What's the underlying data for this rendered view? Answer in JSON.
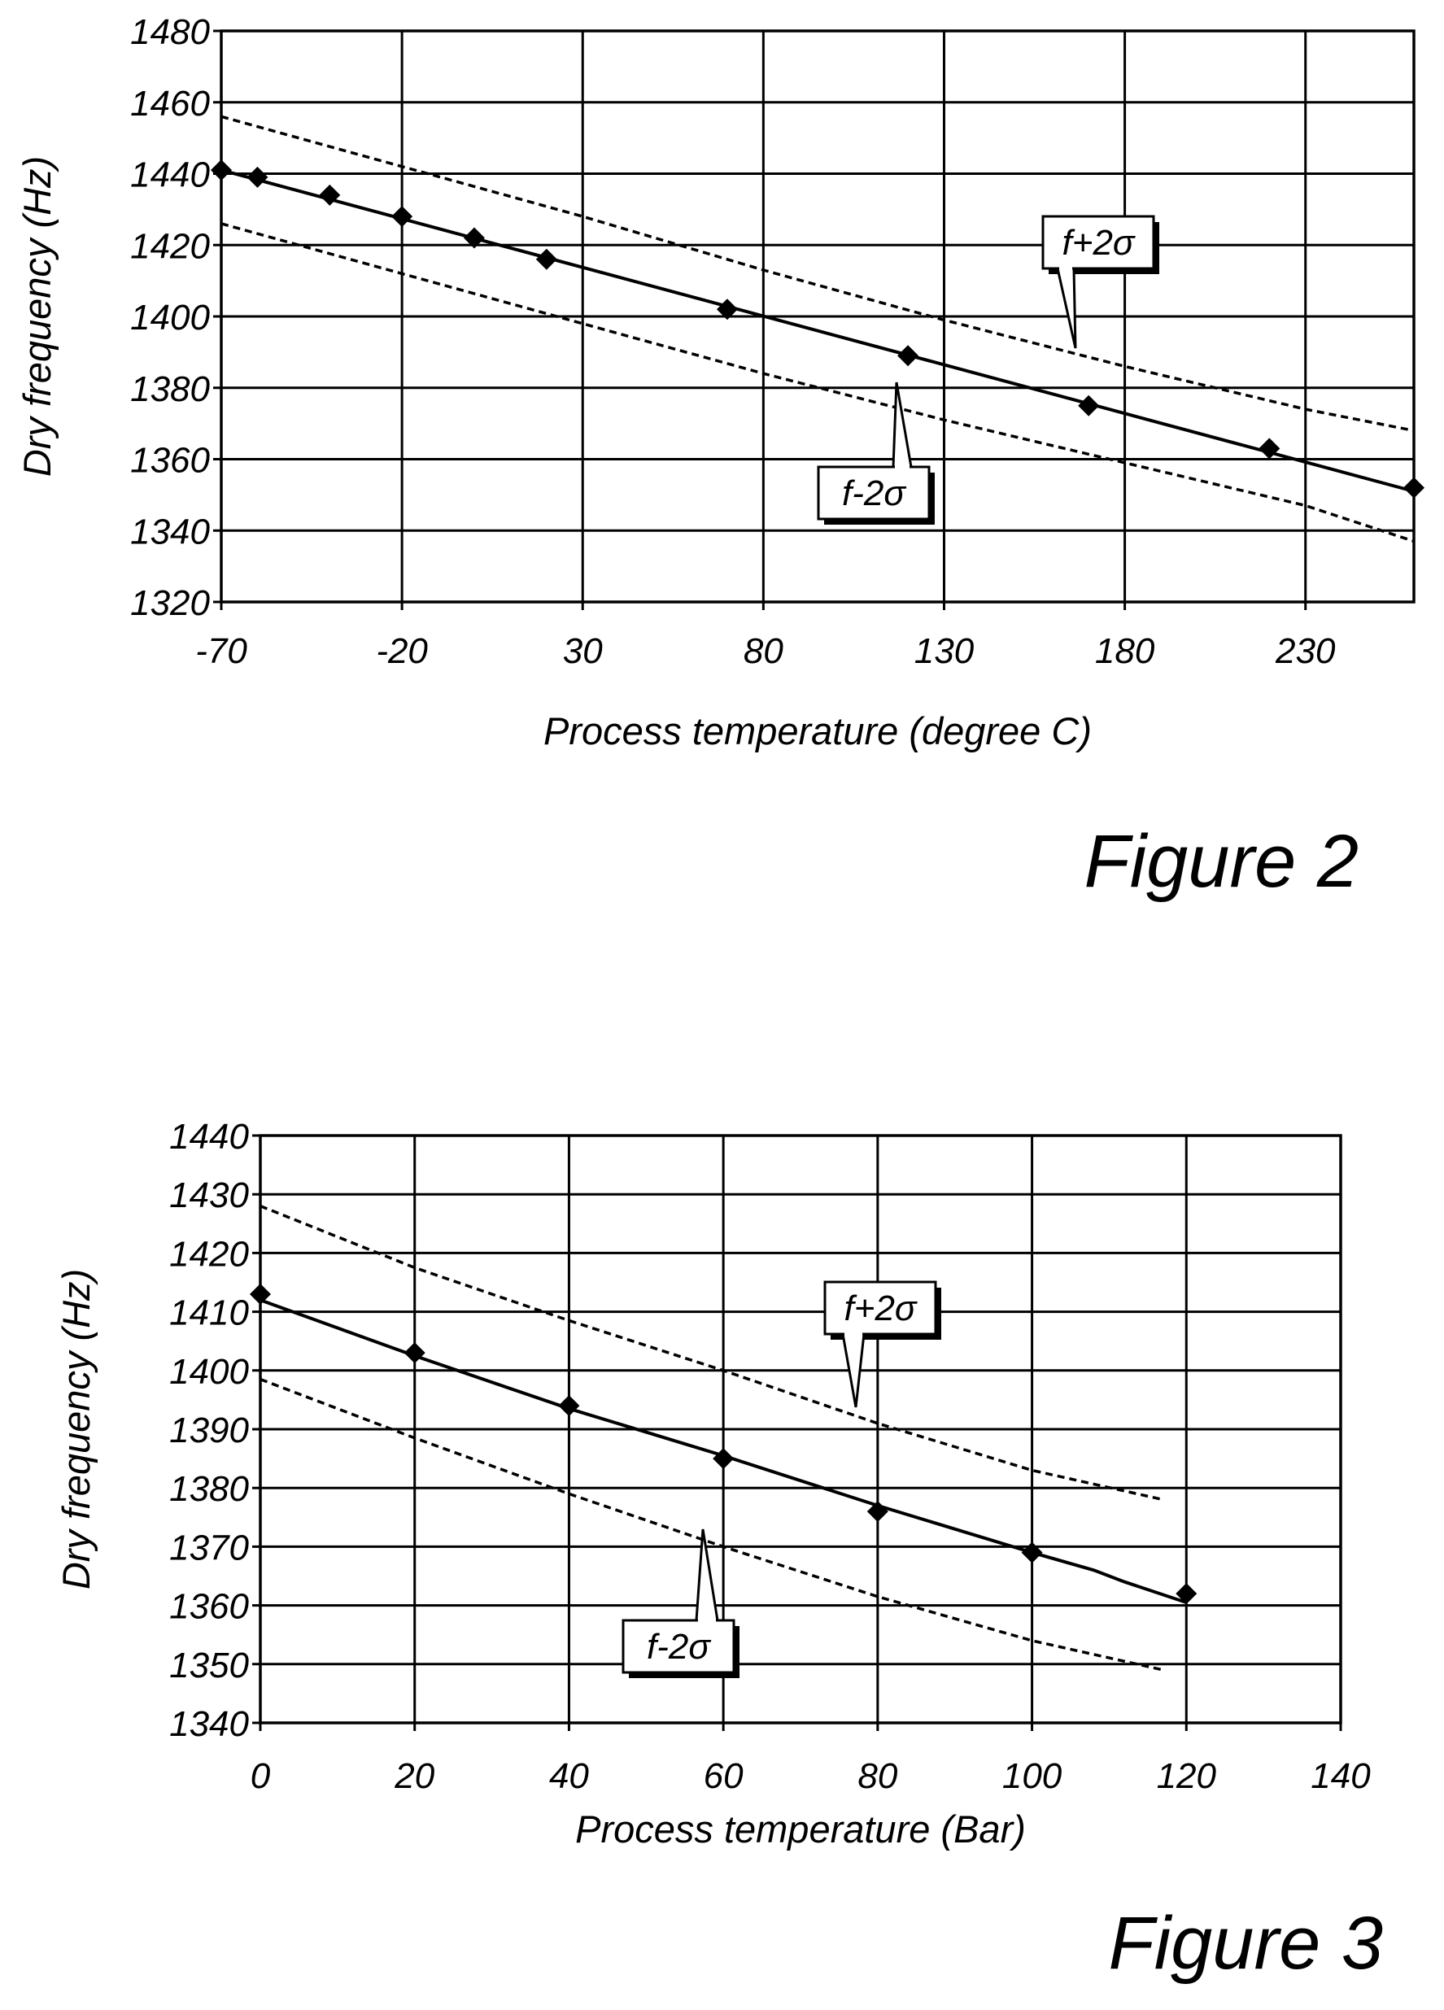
{
  "charts": [
    {
      "caption": "Figure 2",
      "chart_data": {
        "type": "line",
        "xlabel": "Process temperature (degree C)",
        "ylabel": "Dry frequency (Hz)",
        "xlim": [
          -70,
          260
        ],
        "ylim": [
          1320,
          1480
        ],
        "xticks": [
          "-70",
          "-20",
          "30",
          "80",
          "130",
          "180",
          "230"
        ],
        "yticks": [
          "1320",
          "1340",
          "1360",
          "1380",
          "1400",
          "1420",
          "1440",
          "1460",
          "1480"
        ],
        "grid": true,
        "markers": {
          "x": [
            -70,
            -60,
            -40,
            -20,
            0,
            20,
            70,
            120,
            170,
            220,
            260
          ],
          "y": [
            1441,
            1439,
            1434,
            1428,
            1422,
            1416,
            1402,
            1389,
            1375,
            1363,
            1352
          ]
        },
        "fit": {
          "x": [
            -70,
            260
          ],
          "y": [
            1441,
            1351
          ]
        },
        "upper_band": {
          "label": "f+2σ",
          "x": [
            -70,
            -20,
            30,
            80,
            130,
            180,
            230,
            260
          ],
          "y": [
            1456,
            1442,
            1428,
            1413,
            1399,
            1386,
            1374,
            1368
          ]
        },
        "lower_band": {
          "label": "f-2σ",
          "x": [
            -70,
            -20,
            30,
            80,
            130,
            180,
            230,
            260
          ],
          "y": [
            1426,
            1412,
            1398,
            1384,
            1371,
            1359,
            1347,
            1337
          ]
        }
      }
    },
    {
      "caption": "Figure 3",
      "chart_data": {
        "type": "line",
        "xlabel": "Process temperature (Bar)",
        "ylabel": "Dry frequency (Hz)",
        "xlim": [
          0,
          140
        ],
        "ylim": [
          1340,
          1440
        ],
        "xticks": [
          "0",
          "20",
          "40",
          "60",
          "80",
          "100",
          "120",
          "140"
        ],
        "yticks": [
          "1340",
          "1350",
          "1360",
          "1370",
          "1380",
          "1390",
          "1400",
          "1410",
          "1420",
          "1430",
          "1440"
        ],
        "grid": true,
        "markers": {
          "x": [
            0,
            20,
            40,
            60,
            80,
            100,
            120
          ],
          "y": [
            1413,
            1403,
            1394,
            1385,
            1376,
            1369,
            1362
          ]
        },
        "fit": {
          "x": [
            0,
            20,
            40,
            60,
            80,
            100,
            108,
            112,
            120
          ],
          "y": [
            1412,
            1402.5,
            1393.5,
            1385.5,
            1377,
            1369,
            1366,
            1364,
            1360.5
          ]
        },
        "upper_band": {
          "label": "f+2σ",
          "x": [
            0,
            20,
            40,
            60,
            80,
            100,
            117
          ],
          "y": [
            1428,
            1417.5,
            1408.5,
            1400,
            1391,
            1383,
            1378
          ]
        },
        "lower_band": {
          "label": "f-2σ",
          "x": [
            0,
            20,
            40,
            60,
            80,
            100,
            117
          ],
          "y": [
            1398.5,
            1388.5,
            1379,
            1370,
            1361.5,
            1354,
            1349
          ]
        }
      }
    }
  ]
}
